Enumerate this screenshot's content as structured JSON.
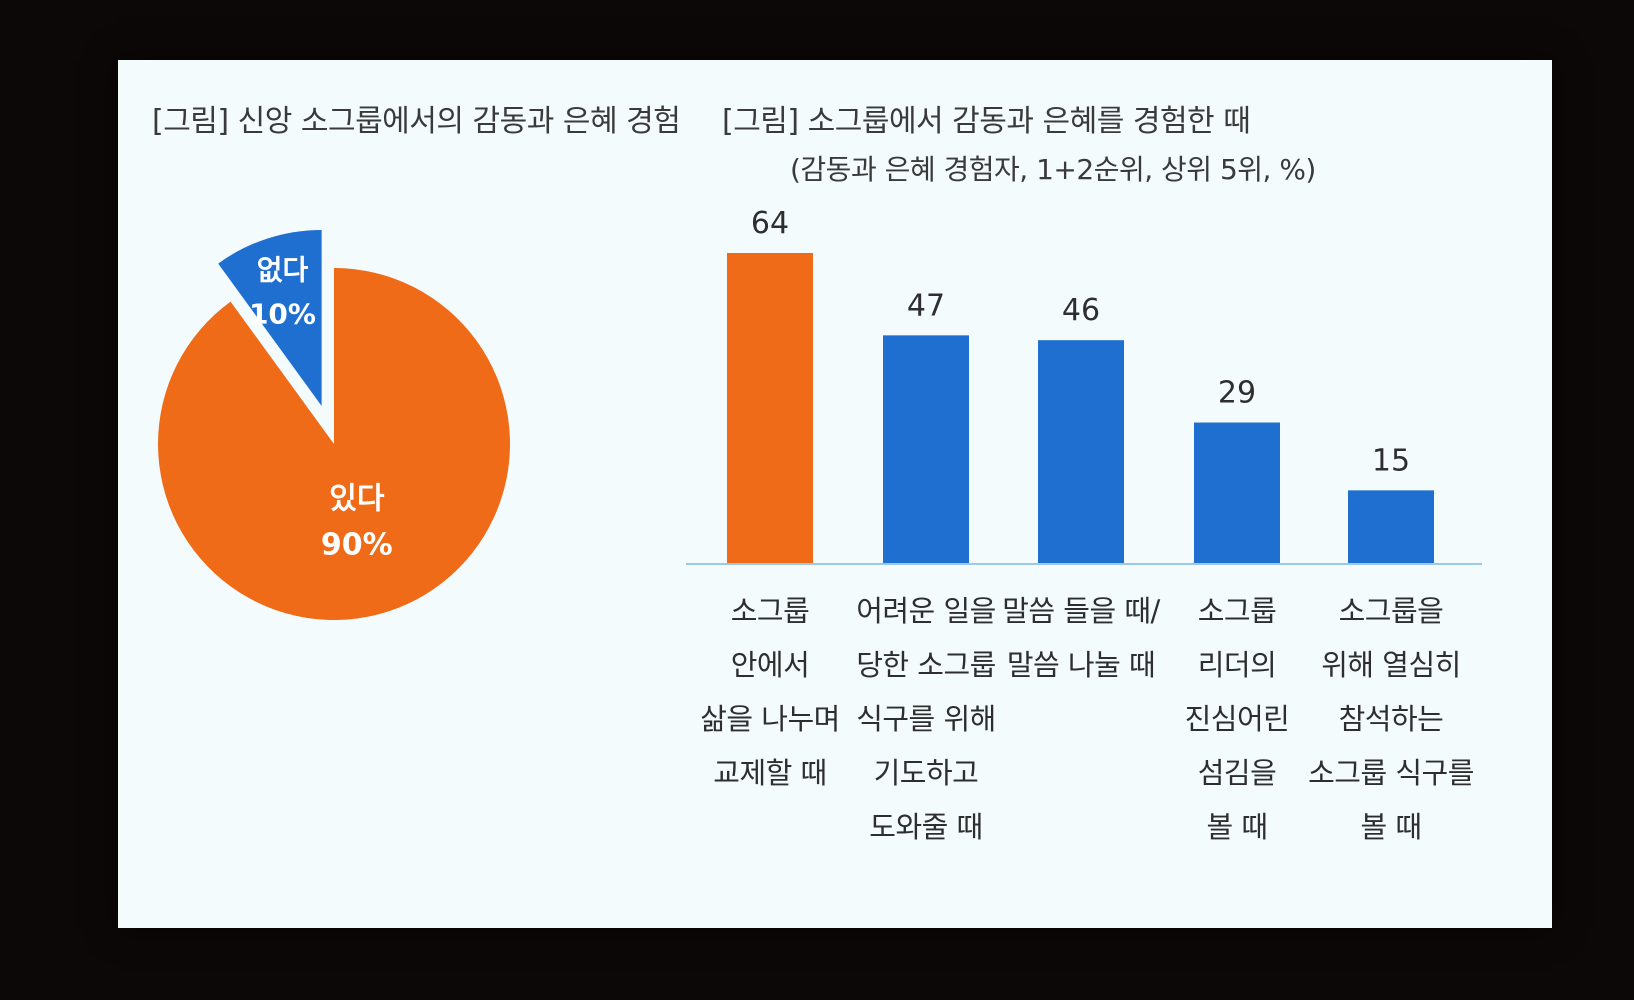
{
  "colors": {
    "orange": "#ef6b17",
    "blue": "#1f6fd1",
    "background": "#f3fbfd",
    "axis": "#9cc9e8"
  },
  "chart_data": [
    {
      "type": "pie",
      "title": "[그림] 신앙 소그룹에서의 감동과 은혜 경험",
      "slices": [
        {
          "label": "있다",
          "value": 90,
          "value_label": "90%",
          "color": "#ef6b17",
          "exploded": false
        },
        {
          "label": "없다",
          "value": 10,
          "value_label": "10%",
          "color": "#1f6fd1",
          "exploded": true
        }
      ]
    },
    {
      "type": "bar",
      "title": "[그림] 소그룹에서 감동과 은혜를 경험한 때",
      "subtitle": "(감동과 은혜 경험자, 1+2순위, 상위 5위, %)",
      "categories": [
        "소그룹\n안에서\n삶을 나누며\n교제할 때",
        "어려운 일을\n당한 소그룹\n식구를 위해\n기도하고\n도와줄 때",
        "말씀 들을 때/\n말씀 나눌 때",
        "소그룹\n리더의\n진심어린\n섬김을\n볼 때",
        "소그룹을\n위해 열심히\n참석하는\n소그룹 식구를\n볼 때"
      ],
      "values": [
        64,
        47,
        46,
        29,
        15
      ],
      "value_labels": [
        "64",
        "47",
        "46",
        "29",
        "15"
      ],
      "bar_colors": [
        "#ef6b17",
        "#1f6fd1",
        "#1f6fd1",
        "#1f6fd1",
        "#1f6fd1"
      ],
      "ylim": [
        0,
        64
      ],
      "grid": false,
      "legend": "none"
    }
  ]
}
